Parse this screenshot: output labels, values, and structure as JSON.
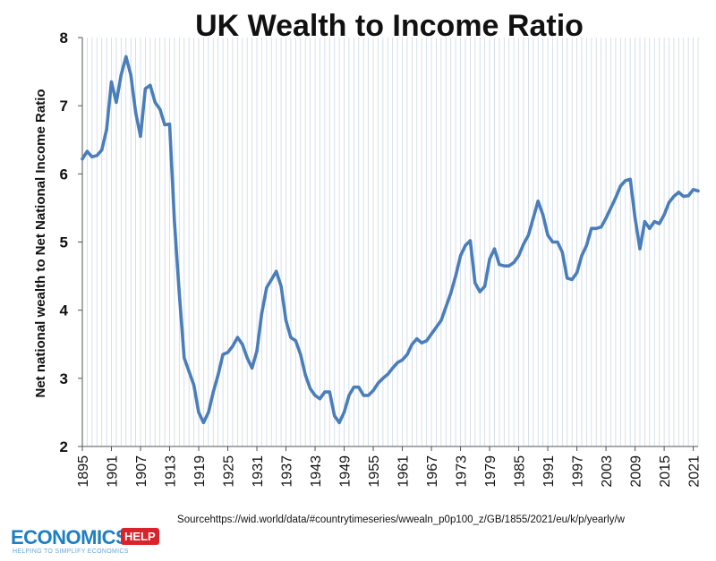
{
  "chart_data": {
    "type": "line",
    "title": "UK Wealth to Income Ratio",
    "xlabel": "",
    "ylabel": "Net national wealth to Net National Income Ratio",
    "ylim": [
      2,
      8
    ],
    "xlim": [
      1895,
      2022
    ],
    "yticks": [
      "2",
      "3",
      "4",
      "5",
      "6",
      "7",
      "8"
    ],
    "xticks": [
      "1895",
      "1901",
      "1907",
      "1913",
      "1919",
      "1925",
      "1931",
      "1937",
      "1943",
      "1949",
      "1955",
      "1961",
      "1967",
      "1973",
      "1979",
      "1985",
      "1991",
      "1997",
      "2003",
      "2009",
      "2015",
      "2021"
    ],
    "grid": "vertical",
    "color": "#4a7ebb",
    "x": [
      1895,
      1896,
      1897,
      1898,
      1899,
      1900,
      1901,
      1902,
      1903,
      1904,
      1905,
      1906,
      1907,
      1908,
      1909,
      1910,
      1911,
      1912,
      1913,
      1914,
      1915,
      1916,
      1917,
      1918,
      1919,
      1920,
      1921,
      1922,
      1923,
      1924,
      1925,
      1926,
      1927,
      1928,
      1929,
      1930,
      1931,
      1932,
      1933,
      1934,
      1935,
      1936,
      1937,
      1938,
      1939,
      1940,
      1941,
      1942,
      1943,
      1944,
      1945,
      1946,
      1947,
      1948,
      1949,
      1950,
      1951,
      1952,
      1953,
      1954,
      1955,
      1956,
      1957,
      1958,
      1959,
      1960,
      1961,
      1962,
      1963,
      1964,
      1965,
      1966,
      1967,
      1968,
      1969,
      1970,
      1971,
      1972,
      1973,
      1974,
      1975,
      1976,
      1977,
      1978,
      1979,
      1980,
      1981,
      1982,
      1983,
      1984,
      1985,
      1986,
      1987,
      1988,
      1989,
      1990,
      1991,
      1992,
      1993,
      1994,
      1995,
      1996,
      1997,
      1998,
      1999,
      2000,
      2001,
      2002,
      2003,
      2004,
      2005,
      2006,
      2007,
      2008,
      2009,
      2010,
      2011,
      2012,
      2013,
      2014,
      2015,
      2016,
      2017,
      2018,
      2019,
      2020,
      2021,
      2022
    ],
    "values": [
      6.22,
      6.33,
      6.25,
      6.27,
      6.35,
      6.65,
      7.35,
      7.05,
      7.45,
      7.72,
      7.45,
      6.9,
      6.55,
      7.25,
      7.3,
      7.05,
      6.95,
      6.72,
      6.73,
      5.3,
      4.25,
      3.3,
      3.1,
      2.9,
      2.5,
      2.35,
      2.5,
      2.8,
      3.05,
      3.35,
      3.38,
      3.47,
      3.6,
      3.5,
      3.3,
      3.15,
      3.4,
      3.95,
      4.33,
      4.45,
      4.57,
      4.35,
      3.85,
      3.6,
      3.55,
      3.35,
      3.05,
      2.85,
      2.75,
      2.7,
      2.8,
      2.8,
      2.45,
      2.35,
      2.5,
      2.75,
      2.87,
      2.87,
      2.75,
      2.75,
      2.82,
      2.93,
      3.0,
      3.06,
      3.15,
      3.23,
      3.27,
      3.35,
      3.5,
      3.58,
      3.52,
      3.55,
      3.65,
      3.75,
      3.85,
      4.05,
      4.25,
      4.5,
      4.8,
      4.95,
      5.02,
      4.4,
      4.27,
      4.35,
      4.75,
      4.9,
      4.67,
      4.65,
      4.65,
      4.7,
      4.8,
      4.97,
      5.1,
      5.35,
      5.6,
      5.4,
      5.1,
      5.0,
      5.0,
      4.85,
      4.47,
      4.45,
      4.55,
      4.8,
      4.95,
      5.2,
      5.2,
      5.22,
      5.35,
      5.5,
      5.65,
      5.82,
      5.9,
      5.92,
      5.35,
      4.9,
      5.3,
      5.2,
      5.3,
      5.27,
      5.4,
      5.58,
      5.67,
      5.73,
      5.67,
      5.68,
      5.77,
      5.75
    ]
  },
  "source": "Sourcehttps://wid.world/data/#countrytimeseries/wwealn_p0p100_z/GB/1855/2021/eu/k/p/yearly/w",
  "logo": {
    "main": "ECONOMICS",
    "badge": "HELP",
    "tagline": "HELPING TO SIMPLIFY ECONOMICS"
  }
}
